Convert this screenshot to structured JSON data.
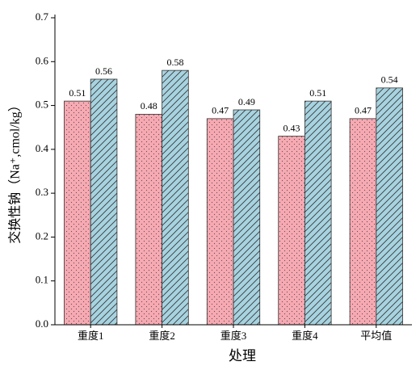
{
  "chart_data": {
    "type": "bar",
    "x_label": "处理",
    "y_label": "交换性钠（Na⁺,cmol/kg）",
    "categories": [
      "重度1",
      "重度2",
      "重度3",
      "重度4",
      "平均值"
    ],
    "series": [
      {
        "color": "#f7a9b2",
        "pattern": "dots",
        "values": [
          0.51,
          0.48,
          0.47,
          0.43,
          0.47
        ]
      },
      {
        "color": "#a7d3e0",
        "pattern": "diagonal",
        "values": [
          0.56,
          0.58,
          0.49,
          0.51,
          0.54
        ]
      }
    ],
    "ylim": [
      0,
      0.7
    ],
    "yticks": [
      {
        "value": 0,
        "label": "0.0"
      },
      0.1,
      0.2,
      0.3,
      0.4,
      0.5,
      0.6,
      0.7
    ]
  }
}
